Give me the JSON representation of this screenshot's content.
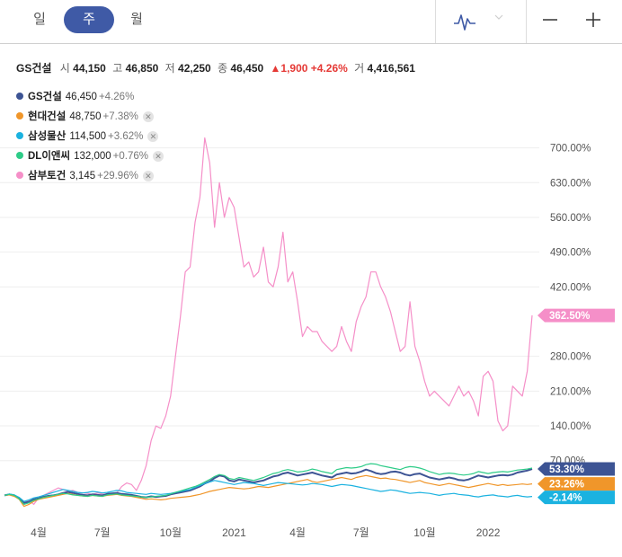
{
  "toolbar": {
    "periods": [
      {
        "label": "일",
        "active": false
      },
      {
        "label": "주",
        "active": true
      },
      {
        "label": "월",
        "active": false
      }
    ],
    "chart_type_icon": "line-chart-icon",
    "dropdown_icon": "chevron-down-icon",
    "zoom_out_icon": "minus-icon",
    "zoom_in_icon": "plus-icon"
  },
  "quote": {
    "name": "GS건설",
    "open_label": "시",
    "open": "44,150",
    "high_label": "고",
    "high": "46,850",
    "low_label": "저",
    "low": "42,250",
    "close_label": "종",
    "close": "46,450",
    "change": "▲1,900",
    "change_pct": "+4.26%",
    "volume_label": "거",
    "volume": "4,416,561"
  },
  "legend": [
    {
      "name": "GS건설",
      "price": "46,450",
      "change": "+4.26%",
      "color": "#3d5494",
      "removable": false
    },
    {
      "name": "현대건설",
      "price": "48,750",
      "change": "+7.38%",
      "color": "#f0962a",
      "removable": true
    },
    {
      "name": "삼성물산",
      "price": "114,500",
      "change": "+3.62%",
      "color": "#1bb2e0",
      "removable": true
    },
    {
      "name": "DL이앤씨",
      "price": "132,000",
      "change": "+0.76%",
      "color": "#2ecc88",
      "removable": true
    },
    {
      "name": "삼부토건",
      "price": "3,145",
      "change": "+29.96%",
      "color": "#f58fc8",
      "removable": true
    }
  ],
  "colors": {
    "accent": "#3f5aa6",
    "up": "#e53935",
    "grid": "#eeeeee",
    "axis_text": "#555555"
  },
  "chart_data": {
    "type": "line",
    "ylabel": "",
    "y_unit": "%",
    "ylim": [
      -30,
      730
    ],
    "y_ticks": [
      70,
      140,
      210,
      280,
      420,
      490,
      560,
      630,
      700
    ],
    "y_tick_labels": [
      "70.00%",
      "140.00%",
      "210.00%",
      "280.00%",
      "420.00%",
      "490.00%",
      "560.00%",
      "630.00%",
      "700.00%"
    ],
    "x_tick_labels": [
      {
        "x": 7,
        "label": "4월"
      },
      {
        "x": 20,
        "label": "7월"
      },
      {
        "x": 34,
        "label": "10월"
      },
      {
        "x": 47,
        "label": "2021"
      },
      {
        "x": 60,
        "label": "4월"
      },
      {
        "x": 73,
        "label": "7월"
      },
      {
        "x": 86,
        "label": "10월"
      },
      {
        "x": 99,
        "label": "2022"
      }
    ],
    "end_labels": [
      {
        "series": "삼부토건",
        "label": "362.50%",
        "color": "#f58fc8"
      },
      {
        "series": "GS건설",
        "label": "53.30%",
        "color": "#3d5494"
      },
      {
        "series": "현대건설",
        "label": "23.26%",
        "color": "#f0962a"
      },
      {
        "series": "삼성물산",
        "label": "-2.14%",
        "color": "#1bb2e0"
      }
    ],
    "grid": true,
    "series": [
      {
        "name": "삼부토건",
        "color": "#f58fc8",
        "values": [
          0,
          2,
          -2,
          -5,
          -15,
          -10,
          -18,
          -5,
          0,
          5,
          10,
          15,
          12,
          8,
          10,
          6,
          5,
          4,
          2,
          5,
          3,
          2,
          1,
          5,
          18,
          25,
          22,
          10,
          30,
          60,
          110,
          140,
          135,
          160,
          200,
          280,
          360,
          450,
          460,
          550,
          600,
          720,
          670,
          540,
          630,
          560,
          600,
          580,
          520,
          460,
          470,
          440,
          450,
          500,
          430,
          420,
          460,
          530,
          430,
          450,
          390,
          320,
          340,
          330,
          330,
          310,
          300,
          290,
          300,
          340,
          310,
          290,
          350,
          380,
          400,
          450,
          450,
          420,
          400,
          370,
          330,
          290,
          300,
          390,
          300,
          270,
          230,
          200,
          210,
          200,
          190,
          180,
          200,
          220,
          200,
          210,
          190,
          160,
          240,
          250,
          230,
          150,
          130,
          140,
          220,
          210,
          200,
          250,
          362.5
        ]
      },
      {
        "name": "GS건설",
        "color": "#3d5494",
        "values": [
          0,
          2,
          0,
          -6,
          -15,
          -13,
          -8,
          -6,
          -3,
          -1,
          0,
          2,
          5,
          7,
          5,
          3,
          1,
          0,
          2,
          1,
          0,
          3,
          4,
          5,
          3,
          2,
          1,
          -1,
          -3,
          -4,
          -2,
          -3,
          -2,
          -1,
          2,
          4,
          6,
          8,
          10,
          14,
          18,
          24,
          28,
          35,
          40,
          38,
          30,
          28,
          32,
          30,
          28,
          26,
          28,
          30,
          34,
          38,
          40,
          44,
          46,
          43,
          40,
          42,
          44,
          46,
          43,
          40,
          38,
          36,
          42,
          44,
          46,
          44,
          45,
          48,
          52,
          49,
          45,
          43,
          44,
          47,
          48,
          46,
          42,
          40,
          43,
          44,
          40,
          36,
          34,
          32,
          34,
          36,
          34,
          31,
          30,
          32,
          36,
          40,
          38,
          36,
          38,
          40,
          41,
          40,
          42,
          46,
          48,
          50,
          53.3
        ]
      },
      {
        "name": "현대건설",
        "color": "#f0962a",
        "values": [
          0,
          1,
          -2,
          -8,
          -22,
          -18,
          -12,
          -8,
          -6,
          -4,
          -2,
          0,
          2,
          4,
          2,
          0,
          -1,
          -2,
          0,
          -1,
          -2,
          0,
          1,
          2,
          0,
          -1,
          -2,
          -4,
          -6,
          -8,
          -7,
          -8,
          -9,
          -8,
          -6,
          -5,
          -4,
          -3,
          -2,
          0,
          2,
          5,
          8,
          10,
          12,
          14,
          16,
          15,
          14,
          13,
          14,
          16,
          18,
          17,
          16,
          18,
          20,
          22,
          24,
          26,
          28,
          30,
          32,
          28,
          26,
          28,
          30,
          32,
          34,
          36,
          34,
          32,
          36,
          38,
          40,
          38,
          36,
          34,
          35,
          33,
          32,
          30,
          28,
          26,
          28,
          30,
          26,
          24,
          22,
          20,
          22,
          24,
          22,
          20,
          18,
          16,
          18,
          20,
          22,
          24,
          22,
          20,
          22,
          20,
          21,
          22,
          23,
          22,
          23.26
        ]
      },
      {
        "name": "삼성물산",
        "color": "#1bb2e0",
        "values": [
          0,
          3,
          1,
          -4,
          -12,
          -9,
          -5,
          -3,
          0,
          3,
          6,
          9,
          12,
          10,
          8,
          6,
          5,
          6,
          8,
          7,
          5,
          6,
          8,
          10,
          9,
          6,
          5,
          4,
          3,
          2,
          4,
          3,
          2,
          3,
          4,
          6,
          8,
          10,
          12,
          16,
          20,
          24,
          27,
          30,
          28,
          26,
          24,
          22,
          24,
          26,
          25,
          24,
          22,
          20,
          22,
          24,
          26,
          25,
          24,
          23,
          22,
          21,
          22,
          24,
          23,
          22,
          20,
          18,
          20,
          22,
          21,
          20,
          18,
          16,
          14,
          12,
          10,
          8,
          9,
          11,
          10,
          8,
          6,
          4,
          5,
          6,
          5,
          4,
          2,
          0,
          2,
          3,
          4,
          2,
          1,
          0,
          -2,
          -3,
          -1,
          0,
          1,
          -1,
          -2,
          -3,
          -1,
          0,
          -2,
          -3,
          -2.14
        ]
      },
      {
        "name": "DL이앤씨",
        "color": "#2ecc88",
        "values": [
          0,
          2,
          0,
          -7,
          -18,
          -15,
          -10,
          -7,
          -4,
          -2,
          0,
          2,
          4,
          3,
          1,
          0,
          -1,
          -2,
          0,
          -1,
          -2,
          1,
          2,
          3,
          1,
          0,
          -1,
          -2,
          -3,
          -4,
          -3,
          -2,
          -1,
          0,
          3,
          6,
          9,
          12,
          15,
          18,
          22,
          27,
          32,
          38,
          42,
          40,
          34,
          32,
          36,
          34,
          32,
          30,
          33,
          36,
          40,
          44,
          46,
          50,
          52,
          50,
          47,
          48,
          50,
          53,
          51,
          48,
          46,
          44,
          52,
          54,
          56,
          55,
          56,
          58,
          62,
          64,
          63,
          60,
          58,
          56,
          54,
          52,
          56,
          58,
          57,
          55,
          52,
          48,
          45,
          42,
          44,
          45,
          44,
          42,
          41,
          42,
          44,
          48,
          46,
          44,
          46,
          47,
          48,
          47,
          49,
          51,
          52,
          53,
          55
        ]
      }
    ]
  }
}
